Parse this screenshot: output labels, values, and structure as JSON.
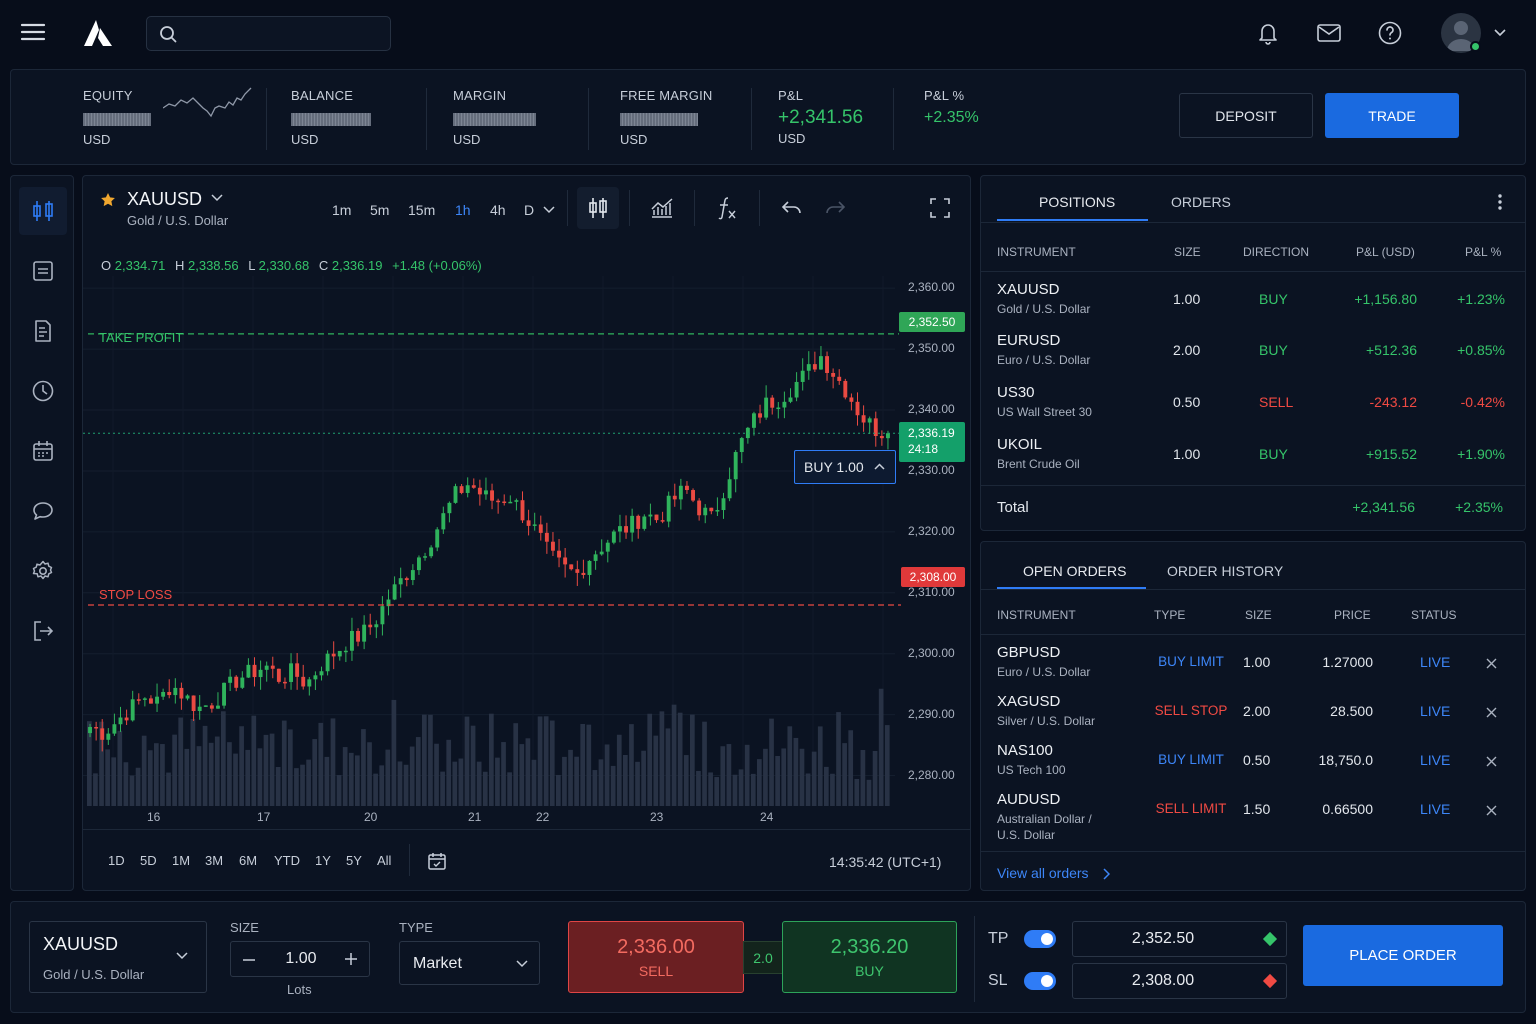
{
  "header": {
    "search_placeholder": "",
    "icons": [
      "menu-icon",
      "logo",
      "search-icon",
      "bell-icon",
      "mail-icon",
      "help-icon",
      "avatar",
      "chevron-down-icon"
    ]
  },
  "account": {
    "equity": {
      "label": "EQUITY",
      "currency": "USD"
    },
    "balance": {
      "label": "BALANCE",
      "currency": "USD"
    },
    "margin": {
      "label": "MARGIN",
      "currency": "USD"
    },
    "free_margin": {
      "label": "FREE MARGIN",
      "currency": "USD"
    },
    "pnl": {
      "label": "P&L",
      "value": "+2,341.56",
      "currency": "USD"
    },
    "pnl_pct": {
      "label": "P&L %",
      "value": "+2.35%"
    },
    "deposit_label": "DEPOSIT",
    "trade_label": "TRADE"
  },
  "sidebar": {
    "items": [
      "trading-icon",
      "watchlist-icon",
      "reports-icon",
      "history-icon",
      "calendar-icon",
      "chat-icon",
      "settings-icon",
      "logout-icon"
    ]
  },
  "chart_panel": {
    "symbol": "XAUUSD",
    "description": "Gold / U.S. Dollar",
    "timeframes": [
      "1m",
      "5m",
      "15m",
      "1h",
      "4h",
      "D"
    ],
    "active_timeframe": "1h",
    "ohlc": {
      "o_label": "O",
      "o": "2,334.71",
      "h_label": "H",
      "h": "2,338.56",
      "l_label": "L",
      "l": "2,330.68",
      "c_label": "C",
      "c": "2,336.19",
      "change": "+1.48 (+0.06%)"
    },
    "take_profit_label": "TAKE PROFIT",
    "stop_loss_label": "STOP LOSS",
    "tp_price": "2,352.50",
    "sl_price": "2,308.00",
    "last_price": "2,336.19",
    "countdown": "24:18",
    "buy_tag": "BUY 1.00",
    "ranges": [
      "1D",
      "5D",
      "1M",
      "3M",
      "6M",
      "YTD",
      "1Y",
      "5Y",
      "All"
    ],
    "clock": "14:35:42 (UTC+1)"
  },
  "chart_data": {
    "type": "candlestick",
    "title": "XAUUSD",
    "y_ticks": [
      "2,360.00",
      "2,350.00",
      "2,340.00",
      "2,330.00",
      "2,320.00",
      "2,310.00",
      "2,300.00",
      "2,290.00",
      "2,280.00"
    ],
    "x_ticks": [
      "16",
      "17",
      "20",
      "21",
      "22",
      "23",
      "24"
    ],
    "ylim": [
      2275,
      2362
    ],
    "take_profit": 2352.5,
    "stop_loss": 2308.0,
    "last": 2336.19,
    "close_path": [
      2288,
      2287,
      2289,
      2291,
      2293,
      2292,
      2295,
      2293,
      2291,
      2292,
      2294,
      2296,
      2297,
      2298,
      2296,
      2297,
      2295,
      2298,
      2300,
      2302,
      2303,
      2305,
      2309,
      2312,
      2315,
      2318,
      2322,
      2326,
      2328,
      2326,
      2325,
      2326,
      2323,
      2320,
      2316,
      2314,
      2313,
      2316,
      2318,
      2320,
      2321,
      2323,
      2322,
      2325,
      2327,
      2324,
      2322,
      2328,
      2334,
      2338,
      2341,
      2342,
      2344,
      2346,
      2349,
      2346,
      2343,
      2339,
      2337,
      2336
    ]
  },
  "positions": {
    "tabs": [
      "POSITIONS",
      "ORDERS"
    ],
    "headers": [
      "INSTRUMENT",
      "SIZE",
      "DIRECTION",
      "P&L (USD)",
      "P&L %"
    ],
    "rows": [
      {
        "symbol": "XAUUSD",
        "desc": "Gold / U.S. Dollar",
        "size": "1.00",
        "dir": "BUY",
        "pnl": "+1,156.80",
        "pct": "+1.23%"
      },
      {
        "symbol": "EURUSD",
        "desc": "Euro / U.S. Dollar",
        "size": "2.00",
        "dir": "BUY",
        "pnl": "+512.36",
        "pct": "+0.85%"
      },
      {
        "symbol": "US30",
        "desc": "US Wall Street 30",
        "size": "0.50",
        "dir": "SELL",
        "pnl": "-243.12",
        "pct": "-0.42%"
      },
      {
        "symbol": "UKOIL",
        "desc": "Brent Crude Oil",
        "size": "1.00",
        "dir": "BUY",
        "pnl": "+915.52",
        "pct": "+1.90%"
      }
    ],
    "total_label": "Total",
    "total_pnl": "+2,341.56",
    "total_pct": "+2.35%"
  },
  "orders": {
    "tabs": [
      "OPEN ORDERS",
      "ORDER HISTORY"
    ],
    "headers": [
      "INSTRUMENT",
      "TYPE",
      "SIZE",
      "PRICE",
      "STATUS"
    ],
    "rows": [
      {
        "symbol": "GBPUSD",
        "desc": "Euro / U.S. Dollar",
        "type": "BUY LIMIT",
        "size": "1.00",
        "price": "1.27000",
        "status": "LIVE"
      },
      {
        "symbol": "XAGUSD",
        "desc": "Silver / U.S. Dollar",
        "type": "SELL STOP",
        "size": "2.00",
        "price": "28.500",
        "status": "LIVE"
      },
      {
        "symbol": "NAS100",
        "desc": "US Tech 100",
        "type": "BUY LIMIT",
        "size": "0.50",
        "price": "18,750.0",
        "status": "LIVE"
      },
      {
        "symbol": "AUDUSD",
        "desc": "Australian Dollar /",
        "desc2": "U.S. Dollar",
        "type": "SELL LIMIT",
        "size": "1.50",
        "price": "0.66500",
        "status": "LIVE"
      }
    ],
    "view_all": "View all orders"
  },
  "ticket": {
    "symbol": "XAUUSD",
    "desc": "Gold / U.S. Dollar",
    "size_label": "SIZE",
    "size": "1.00",
    "lots": "Lots",
    "type_label": "TYPE",
    "type": "Market",
    "sell_price": "2,336.00",
    "sell_label": "SELL",
    "spread": "2.0",
    "buy_price": "2,336.20",
    "buy_label": "BUY",
    "tp_label": "TP",
    "tp_value": "2,352.50",
    "sl_label": "SL",
    "sl_value": "2,308.00",
    "place_label": "PLACE ORDER"
  },
  "colors": {
    "accent": "#1a6ae0",
    "green": "#35c46a",
    "red": "#f04a43",
    "bg": "#070d1a",
    "panel": "#0b1322"
  }
}
